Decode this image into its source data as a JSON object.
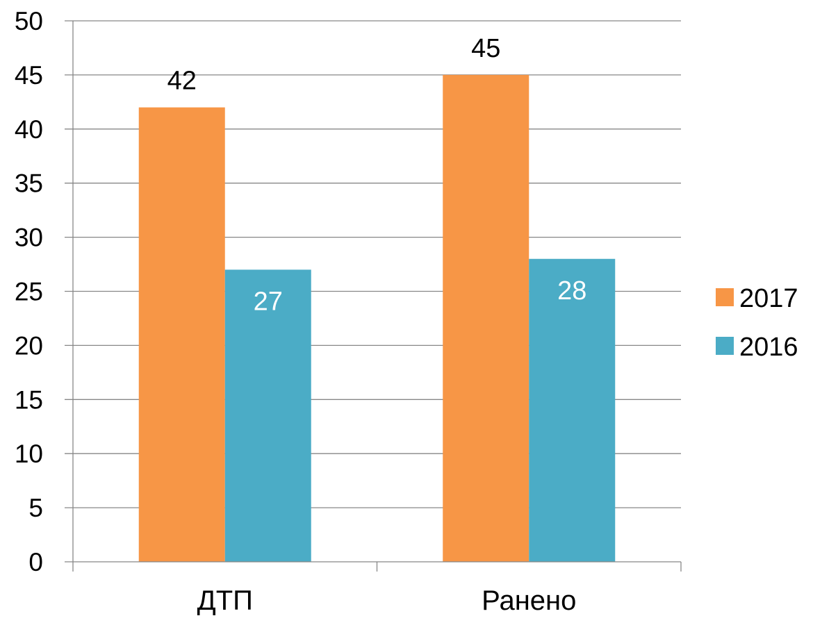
{
  "chart_data": {
    "type": "bar",
    "title": "",
    "xlabel": "",
    "ylabel": "",
    "categories": [
      "ДТП",
      "Ранено"
    ],
    "series": [
      {
        "name": "2017",
        "values": [
          42,
          45
        ],
        "color": "#F79646",
        "label_color": "#000000",
        "label_position": "above"
      },
      {
        "name": "2016",
        "values": [
          27,
          28
        ],
        "color": "#4BACC6",
        "label_color": "#ffffff",
        "label_position": "inside-top"
      }
    ],
    "ylim": [
      0,
      50
    ],
    "y_ticks": [
      0,
      5,
      10,
      15,
      20,
      25,
      30,
      35,
      40,
      45,
      50
    ],
    "grid": true,
    "legend_position": "right"
  }
}
